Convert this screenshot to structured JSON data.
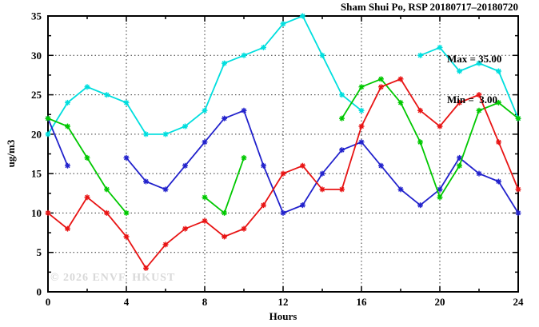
{
  "chart_data": {
    "type": "line",
    "title": "Sham Shui Po, RSP 20180717–20180720",
    "xlabel": "Hours",
    "ylabel": "ug/m3",
    "watermark": "© 2026 ENVF, HKUST",
    "annotations": {
      "max_label": "Max = 35.00",
      "min_label": "Min =  3.00"
    },
    "xlim": [
      0,
      24
    ],
    "ylim": [
      0,
      35
    ],
    "xticks": [
      0,
      4,
      8,
      12,
      16,
      20,
      24
    ],
    "yticks": [
      0,
      5,
      10,
      15,
      20,
      25,
      30,
      35
    ],
    "xminor": [
      2,
      6,
      10,
      14,
      18,
      22
    ],
    "yminor": [
      2.5,
      7.5,
      12.5,
      17.5,
      22.5,
      27.5,
      32.5
    ],
    "grid_x": [
      4,
      8,
      12,
      16,
      20
    ],
    "grid_y": [
      5,
      10,
      15,
      20,
      25,
      30
    ],
    "grid_on": true,
    "legend_position": "top-right-inside",
    "x": [
      0,
      1,
      2,
      3,
      4,
      5,
      6,
      7,
      8,
      9,
      10,
      11,
      12,
      13,
      14,
      15,
      16,
      17,
      18,
      19,
      20,
      21,
      22,
      23,
      24
    ],
    "series": [
      {
        "name": "cyan-line",
        "color": "#00dede",
        "values": [
          20,
          24,
          26,
          25,
          24,
          20,
          20,
          21,
          23,
          29,
          30,
          31,
          34,
          35,
          30,
          25,
          23,
          null,
          null,
          30,
          31,
          28,
          29,
          28,
          22
        ]
      },
      {
        "name": "blue-line",
        "color": "#2222cc",
        "values": [
          22,
          16,
          null,
          null,
          17,
          14,
          13,
          16,
          19,
          22,
          23,
          16,
          10,
          11,
          15,
          18,
          19,
          16,
          13,
          11,
          13,
          17,
          15,
          14,
          10
        ]
      },
      {
        "name": "green-line",
        "color": "#00c800",
        "values": [
          22,
          21,
          17,
          13,
          10,
          null,
          null,
          null,
          12,
          10,
          17,
          null,
          null,
          null,
          null,
          22,
          26,
          27,
          24,
          19,
          12,
          16,
          23,
          24,
          22
        ]
      },
      {
        "name": "red-line",
        "color": "#e81414",
        "values": [
          10,
          8,
          12,
          10,
          7,
          3,
          6,
          8,
          9,
          7,
          8,
          11,
          15,
          16,
          13,
          13,
          21,
          26,
          27,
          23,
          21,
          24,
          25,
          19,
          13
        ]
      }
    ]
  }
}
